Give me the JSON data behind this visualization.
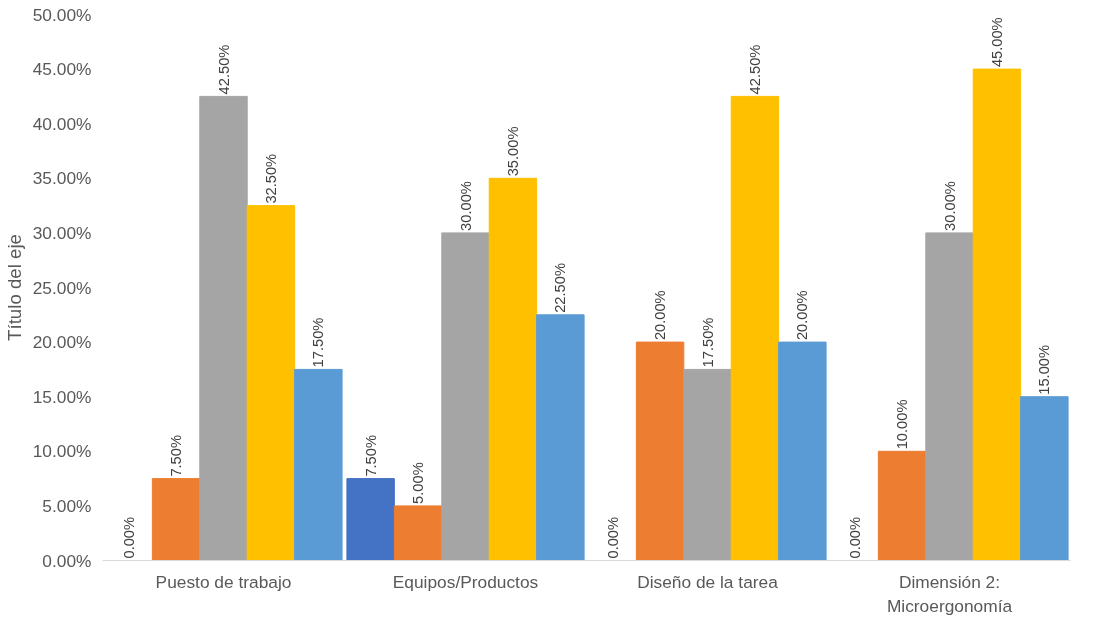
{
  "chart_data": {
    "type": "bar",
    "ylabel": "Título del eje",
    "categories": [
      "Puesto de trabajo",
      "Equipos/Productos",
      "Diseño de la tarea",
      "Dimensión 2:\nMicroergonomía"
    ],
    "series": [
      {
        "color": "#4472c4",
        "values": [
          0,
          7.5,
          0,
          0
        ],
        "value_labels": [
          "0.00%",
          "7.50%",
          "0.00%",
          "0.00%"
        ]
      },
      {
        "color": "#ed7d31",
        "values": [
          7.5,
          5,
          20,
          10
        ],
        "value_labels": [
          "7.50%",
          "5.00%",
          "20.00%",
          "10.00%"
        ]
      },
      {
        "color": "#a5a5a5",
        "values": [
          42.5,
          30,
          17.5,
          30
        ],
        "value_labels": [
          "42.50%",
          "30.00%",
          "17.50%",
          "30.00%"
        ]
      },
      {
        "color": "#ffc000",
        "values": [
          32.5,
          35,
          42.5,
          45
        ],
        "value_labels": [
          "32.50%",
          "35.00%",
          "42.50%",
          "45.00%"
        ]
      },
      {
        "color": "#5b9bd5",
        "values": [
          17.5,
          22.5,
          20,
          15
        ],
        "value_labels": [
          "17.50%",
          "22.50%",
          "20.00%",
          "15.00%"
        ]
      }
    ],
    "ylim": [
      0,
      50
    ],
    "yticks": [
      {
        "value": 0,
        "label": "0.00%"
      },
      {
        "value": 5,
        "label": "5.00%"
      },
      {
        "value": 10,
        "label": "10.00%"
      },
      {
        "value": 15,
        "label": "15.00%"
      },
      {
        "value": 20,
        "label": "20.00%"
      },
      {
        "value": 25,
        "label": "25.00%"
      },
      {
        "value": 30,
        "label": "30.00%"
      },
      {
        "value": 35,
        "label": "35.00%"
      },
      {
        "value": 40,
        "label": "40.00%"
      },
      {
        "value": 45,
        "label": "45.00%"
      },
      {
        "value": 50,
        "label": "50.00%"
      }
    ],
    "grid": false
  }
}
